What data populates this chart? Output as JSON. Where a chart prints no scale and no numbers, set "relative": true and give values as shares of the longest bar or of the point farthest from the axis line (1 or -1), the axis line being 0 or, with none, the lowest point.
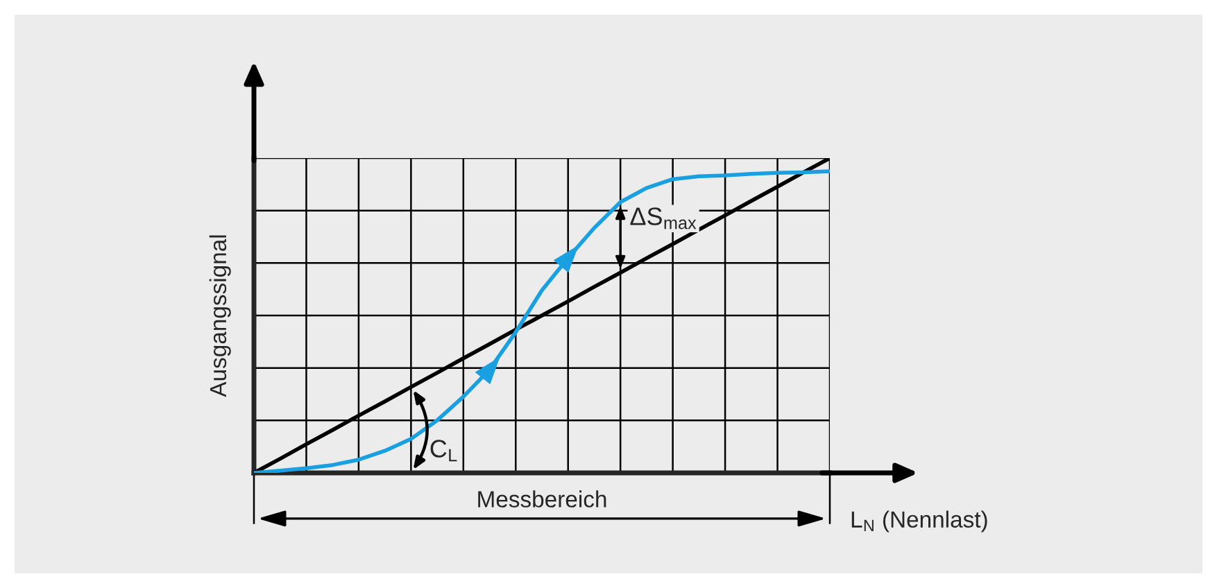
{
  "chart_data": {
    "type": "line",
    "relative": true,
    "grid": true,
    "xlabel": "L$_{N}$ (Nennlast)",
    "ylabel": "Ausgangssignal",
    "categories": [
      null,
      null,
      null,
      null,
      null,
      null,
      null,
      null,
      null,
      null,
      null,
      null,
      null,
      null,
      null,
      null,
      null,
      null,
      null,
      null,
      null,
      null,
      null
    ],
    "series": [
      {
        "color": "#000000",
        "values": [
          0,
          0.045,
          0.091,
          0.136,
          0.182,
          0.227,
          0.273,
          0.318,
          0.364,
          0.409,
          0.455,
          0.5,
          0.545,
          0.591,
          0.636,
          0.682,
          0.727,
          0.773,
          0.818,
          0.864,
          0.909,
          0.955,
          1
        ]
      },
      {
        "color": "#1aa0e0",
        "values": [
          0,
          0.007,
          0.015,
          0.025,
          0.042,
          0.07,
          0.108,
          0.167,
          0.242,
          0.328,
          0.447,
          0.58,
          0.683,
          0.778,
          0.86,
          0.905,
          0.933,
          0.942,
          0.945,
          0.95,
          0.953,
          0.955,
          0.958
        ]
      }
    ],
    "annotations": [
      "ΔS$_{max}$",
      "C$_{L}$",
      "Messbereich"
    ]
  }
}
